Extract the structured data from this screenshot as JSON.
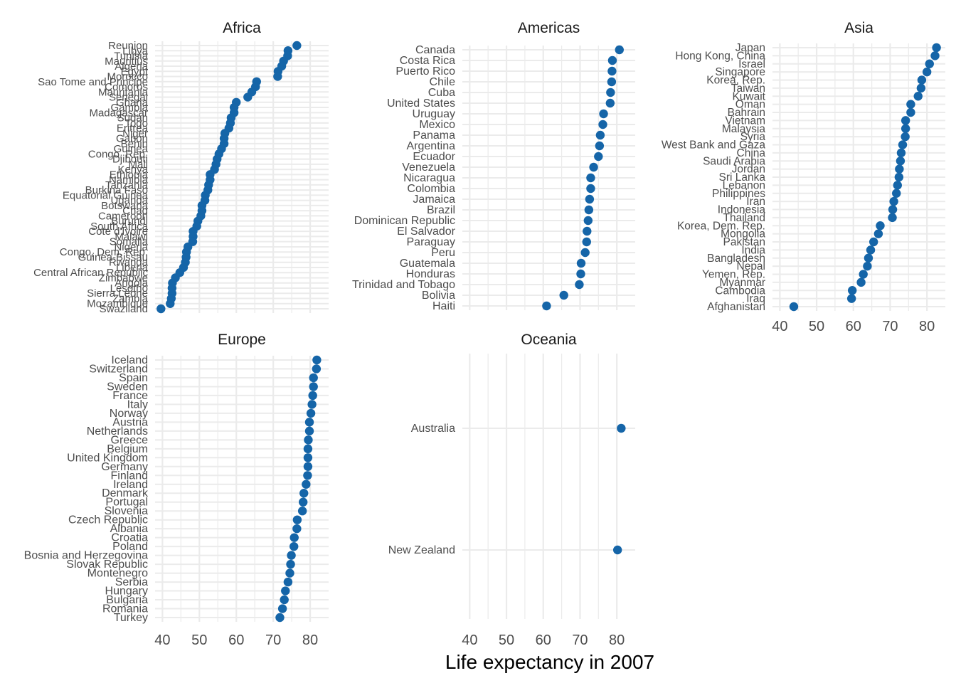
{
  "chart_data": {
    "type": "scatter",
    "xlabel": "Life expectancy in 2007",
    "point_color": "#1565a8",
    "grid_color": "#ebebeb",
    "grid": true,
    "panels": [
      {
        "title": "Africa",
        "xlim": [
          38,
          85
        ],
        "ticks": [],
        "points": [
          {
            "label": "Reunion",
            "value": 76.4
          },
          {
            "label": "Libya",
            "value": 74.0
          },
          {
            "label": "Tunisia",
            "value": 73.9
          },
          {
            "label": "Mauritius",
            "value": 72.8
          },
          {
            "label": "Algeria",
            "value": 72.3
          },
          {
            "label": "Egypt",
            "value": 71.3
          },
          {
            "label": "Morocco",
            "value": 71.2
          },
          {
            "label": "Sao Tome and Principe",
            "value": 65.5
          },
          {
            "label": "Comoros",
            "value": 65.2
          },
          {
            "label": "Mauritania",
            "value": 64.2
          },
          {
            "label": "Senegal",
            "value": 63.1
          },
          {
            "label": "Ghana",
            "value": 60.0
          },
          {
            "label": "Gambia",
            "value": 59.4
          },
          {
            "label": "Madagascar",
            "value": 59.4
          },
          {
            "label": "Sudan",
            "value": 58.6
          },
          {
            "label": "Togo",
            "value": 58.4
          },
          {
            "label": "Eritrea",
            "value": 58.0
          },
          {
            "label": "Niger",
            "value": 56.9
          },
          {
            "label": "Gabon",
            "value": 56.7
          },
          {
            "label": "Benin",
            "value": 56.7
          },
          {
            "label": "Guinea",
            "value": 56.0
          },
          {
            "label": "Congo, Rep.",
            "value": 55.3
          },
          {
            "label": "Djibouti",
            "value": 54.8
          },
          {
            "label": "Mali",
            "value": 54.5
          },
          {
            "label": "Kenya",
            "value": 54.1
          },
          {
            "label": "Ethiopia",
            "value": 52.9
          },
          {
            "label": "Namibia",
            "value": 52.9
          },
          {
            "label": "Tanzania",
            "value": 52.5
          },
          {
            "label": "Burkina Faso",
            "value": 52.3
          },
          {
            "label": "Equatorial Guinea",
            "value": 51.6
          },
          {
            "label": "Uganda",
            "value": 51.5
          },
          {
            "label": "Botswana",
            "value": 50.7
          },
          {
            "label": "Chad",
            "value": 50.7
          },
          {
            "label": "Cameroon",
            "value": 50.4
          },
          {
            "label": "Burundi",
            "value": 49.6
          },
          {
            "label": "South Africa",
            "value": 49.3
          },
          {
            "label": "Cote d'Ivoire",
            "value": 48.3
          },
          {
            "label": "Malawi",
            "value": 48.3
          },
          {
            "label": "Somalia",
            "value": 48.2
          },
          {
            "label": "Nigeria",
            "value": 46.9
          },
          {
            "label": "Congo, Dem. Rep.",
            "value": 46.5
          },
          {
            "label": "Guinea-Bissau",
            "value": 46.4
          },
          {
            "label": "Rwanda",
            "value": 46.2
          },
          {
            "label": "Liberia",
            "value": 45.7
          },
          {
            "label": "Central African Republic",
            "value": 44.7
          },
          {
            "label": "Zimbabwe",
            "value": 43.5
          },
          {
            "label": "Angola",
            "value": 42.7
          },
          {
            "label": "Lesotho",
            "value": 42.6
          },
          {
            "label": "Sierra Leone",
            "value": 42.6
          },
          {
            "label": "Zambia",
            "value": 42.4
          },
          {
            "label": "Mozambique",
            "value": 42.1
          },
          {
            "label": "Swaziland",
            "value": 39.6
          }
        ]
      },
      {
        "title": "Americas",
        "xlim": [
          38,
          85
        ],
        "ticks": [],
        "points": [
          {
            "label": "Canada",
            "value": 80.7
          },
          {
            "label": "Costa Rica",
            "value": 78.8
          },
          {
            "label": "Puerto Rico",
            "value": 78.7
          },
          {
            "label": "Chile",
            "value": 78.6
          },
          {
            "label": "Cuba",
            "value": 78.3
          },
          {
            "label": "United States",
            "value": 78.2
          },
          {
            "label": "Uruguay",
            "value": 76.4
          },
          {
            "label": "Mexico",
            "value": 76.2
          },
          {
            "label": "Panama",
            "value": 75.5
          },
          {
            "label": "Argentina",
            "value": 75.3
          },
          {
            "label": "Ecuador",
            "value": 75.0
          },
          {
            "label": "Venezuela",
            "value": 73.7
          },
          {
            "label": "Nicaragua",
            "value": 72.9
          },
          {
            "label": "Colombia",
            "value": 72.9
          },
          {
            "label": "Jamaica",
            "value": 72.6
          },
          {
            "label": "Brazil",
            "value": 72.4
          },
          {
            "label": "Dominican Republic",
            "value": 72.2
          },
          {
            "label": "El Salvador",
            "value": 71.9
          },
          {
            "label": "Paraguay",
            "value": 71.8
          },
          {
            "label": "Peru",
            "value": 71.4
          },
          {
            "label": "Guatemala",
            "value": 70.3
          },
          {
            "label": "Honduras",
            "value": 70.2
          },
          {
            "label": "Trinidad and Tobago",
            "value": 69.8
          },
          {
            "label": "Bolivia",
            "value": 65.6
          },
          {
            "label": "Haiti",
            "value": 60.9
          }
        ]
      },
      {
        "title": "Asia",
        "xlim": [
          38,
          85
        ],
        "ticks": [
          "40",
          "50",
          "60",
          "70",
          "80"
        ],
        "points": [
          {
            "label": "Japan",
            "value": 82.6
          },
          {
            "label": "Hong Kong, China",
            "value": 82.2
          },
          {
            "label": "Israel",
            "value": 80.7
          },
          {
            "label": "Singapore",
            "value": 80.0
          },
          {
            "label": "Korea, Rep.",
            "value": 78.6
          },
          {
            "label": "Taiwan",
            "value": 78.4
          },
          {
            "label": "Kuwait",
            "value": 77.6
          },
          {
            "label": "Oman",
            "value": 75.6
          },
          {
            "label": "Bahrain",
            "value": 75.6
          },
          {
            "label": "Vietnam",
            "value": 74.2
          },
          {
            "label": "Malaysia",
            "value": 74.2
          },
          {
            "label": "Syria",
            "value": 74.1
          },
          {
            "label": "West Bank and Gaza",
            "value": 73.4
          },
          {
            "label": "China",
            "value": 73.0
          },
          {
            "label": "Saudi Arabia",
            "value": 72.8
          },
          {
            "label": "Jordan",
            "value": 72.5
          },
          {
            "label": "Sri Lanka",
            "value": 72.4
          },
          {
            "label": "Lebanon",
            "value": 72.0
          },
          {
            "label": "Philippines",
            "value": 71.7
          },
          {
            "label": "Iran",
            "value": 71.0
          },
          {
            "label": "Indonesia",
            "value": 70.7
          },
          {
            "label": "Thailand",
            "value": 70.6
          },
          {
            "label": "Korea, Dem. Rep.",
            "value": 67.3
          },
          {
            "label": "Mongolia",
            "value": 66.8
          },
          {
            "label": "Pakistan",
            "value": 65.5
          },
          {
            "label": "India",
            "value": 64.7
          },
          {
            "label": "Bangladesh",
            "value": 64.1
          },
          {
            "label": "Nepal",
            "value": 63.8
          },
          {
            "label": "Yemen, Rep.",
            "value": 62.7
          },
          {
            "label": "Myanmar",
            "value": 62.1
          },
          {
            "label": "Cambodia",
            "value": 59.7
          },
          {
            "label": "Iraq",
            "value": 59.5
          },
          {
            "label": "Afghanistan",
            "value": 43.8
          }
        ]
      },
      {
        "title": "Europe",
        "xlim": [
          38,
          85
        ],
        "ticks": [
          "40",
          "50",
          "60",
          "70",
          "80"
        ],
        "points": [
          {
            "label": "Iceland",
            "value": 81.8
          },
          {
            "label": "Switzerland",
            "value": 81.7
          },
          {
            "label": "Spain",
            "value": 80.9
          },
          {
            "label": "Sweden",
            "value": 80.9
          },
          {
            "label": "France",
            "value": 80.7
          },
          {
            "label": "Italy",
            "value": 80.5
          },
          {
            "label": "Norway",
            "value": 80.2
          },
          {
            "label": "Austria",
            "value": 79.8
          },
          {
            "label": "Netherlands",
            "value": 79.8
          },
          {
            "label": "Greece",
            "value": 79.5
          },
          {
            "label": "Belgium",
            "value": 79.4
          },
          {
            "label": "United Kingdom",
            "value": 79.4
          },
          {
            "label": "Germany",
            "value": 79.4
          },
          {
            "label": "Finland",
            "value": 79.3
          },
          {
            "label": "Ireland",
            "value": 78.9
          },
          {
            "label": "Denmark",
            "value": 78.3
          },
          {
            "label": "Portugal",
            "value": 78.1
          },
          {
            "label": "Slovenia",
            "value": 77.9
          },
          {
            "label": "Czech Republic",
            "value": 76.5
          },
          {
            "label": "Albania",
            "value": 76.4
          },
          {
            "label": "Croatia",
            "value": 75.7
          },
          {
            "label": "Poland",
            "value": 75.6
          },
          {
            "label": "Bosnia and Herzegovina",
            "value": 74.9
          },
          {
            "label": "Slovak Republic",
            "value": 74.7
          },
          {
            "label": "Montenegro",
            "value": 74.5
          },
          {
            "label": "Serbia",
            "value": 74.0
          },
          {
            "label": "Hungary",
            "value": 73.3
          },
          {
            "label": "Bulgaria",
            "value": 73.0
          },
          {
            "label": "Romania",
            "value": 72.5
          },
          {
            "label": "Turkey",
            "value": 71.8
          }
        ]
      },
      {
        "title": "Oceania",
        "xlim": [
          38,
          85
        ],
        "ticks": [
          "40",
          "50",
          "60",
          "70",
          "80"
        ],
        "points": [
          {
            "label": "Australia",
            "value": 81.2
          },
          {
            "label": "New Zealand",
            "value": 80.2
          }
        ]
      }
    ]
  }
}
